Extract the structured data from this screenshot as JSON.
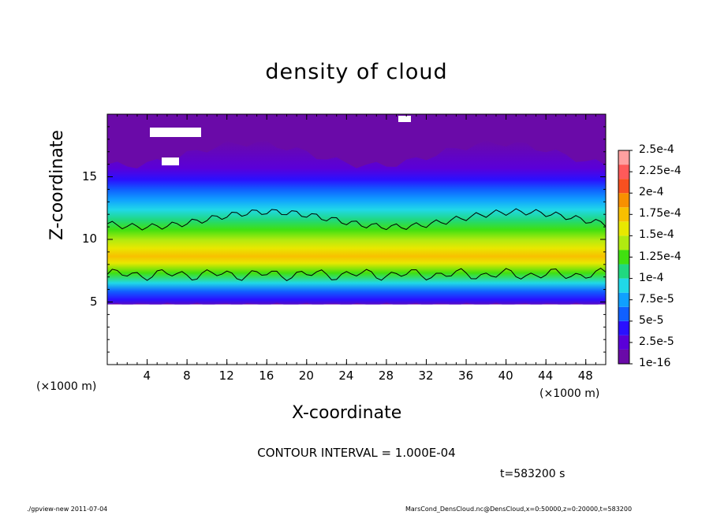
{
  "chart_data": {
    "type": "heatmap",
    "title": "density of cloud",
    "xlabel": "X-coordinate",
    "ylabel": "Z-coordinate",
    "x_unit_left": "(×1000 m)",
    "x_unit_right": "(×1000 m)",
    "xlim": [
      0,
      50
    ],
    "ylim": [
      0,
      20
    ],
    "x_ticks": [
      4,
      8,
      12,
      16,
      20,
      24,
      28,
      32,
      36,
      40,
      44,
      48
    ],
    "y_ticks": [
      5,
      10,
      15
    ],
    "colorbar": {
      "labels": [
        "1e-16",
        "2.5e-5",
        "5e-5",
        "7.5e-5",
        "1e-4",
        "1.25e-4",
        "1.5e-4",
        "1.75e-4",
        "2e-4",
        "2.25e-4",
        "2.5e-4"
      ],
      "colors": [
        "#6a0aa8",
        "#5a00d8",
        "#2a10ff",
        "#1060ff",
        "#10a0ff",
        "#20d8e8",
        "#20d880",
        "#40e010",
        "#b0ea10",
        "#e8e800",
        "#f8c000",
        "#f89000",
        "#f85020",
        "#ff5a5a",
        "#ffa0a0"
      ]
    },
    "contour_interval": "CONTOUR INTERVAL = 1.000E-04",
    "time": "t=583200 s"
  },
  "footer": {
    "left": "./gpview-new   2011-07-04",
    "right": "MarsCond_DensCloud.nc@DensCloud,x=0:50000,z=0:20000,t=583200"
  }
}
